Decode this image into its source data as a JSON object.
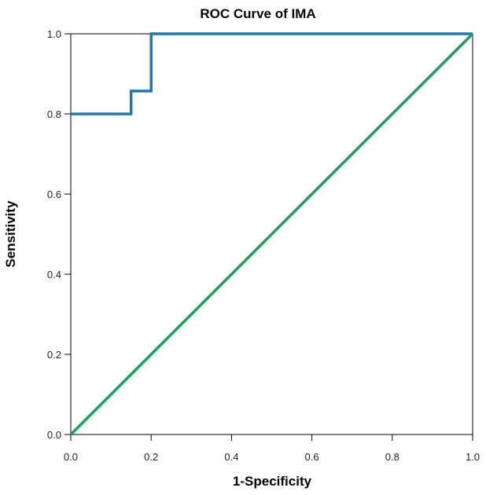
{
  "chart_data": {
    "type": "line",
    "title": "ROC Curve of IMA",
    "xlabel": "1-Specificity",
    "ylabel": "Sensitivity",
    "xlim": [
      0,
      1
    ],
    "ylim": [
      0,
      1
    ],
    "xticks": [
      "0.0",
      "0.2",
      "0.4",
      "0.6",
      "0.8",
      "1.0"
    ],
    "yticks": [
      "0.0",
      "0.2",
      "0.4",
      "0.6",
      "0.8",
      "1.0"
    ],
    "grid": false,
    "series": [
      {
        "color": "#1f77b4",
        "x": [
          0.0,
          0.15,
          0.15,
          0.2,
          0.2,
          1.0
        ],
        "y": [
          0.8,
          0.8,
          0.857,
          0.857,
          1.0,
          1.0
        ]
      },
      {
        "color": "#1aa05a",
        "x": [
          0.0,
          1.0
        ],
        "y": [
          0.0,
          1.0
        ]
      }
    ]
  }
}
